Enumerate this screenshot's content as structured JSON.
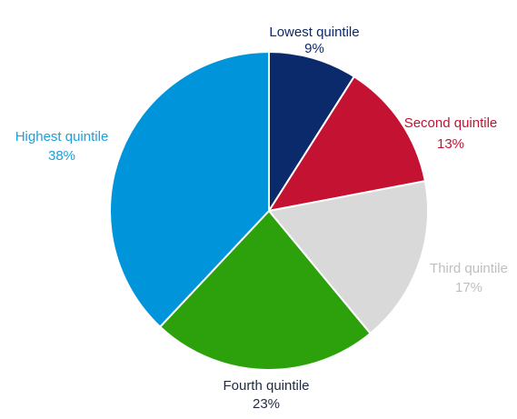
{
  "chart_data": {
    "type": "pie",
    "title": "",
    "slices": [
      {
        "label": "Lowest quintile",
        "value_label": "9%",
        "value": 9,
        "color": "#0b2a6b"
      },
      {
        "label": "Second quintile",
        "value_label": "13%",
        "value": 13,
        "color": "#c41232"
      },
      {
        "label": "Third quintile",
        "value_label": "17%",
        "value": 17,
        "color": "#d9d9d9",
        "label_color": "#bfbfbf"
      },
      {
        "label": "Fourth quintile",
        "value_label": "23%",
        "value": 23,
        "color": "#2ca10c",
        "label_color": "#1f2a44"
      },
      {
        "label": "Highest quintile",
        "value_label": "38%",
        "value": 38,
        "color": "#0094db",
        "label_color": "#1ba1dc"
      }
    ],
    "start_angle_deg": 0,
    "direction": "clockwise"
  }
}
